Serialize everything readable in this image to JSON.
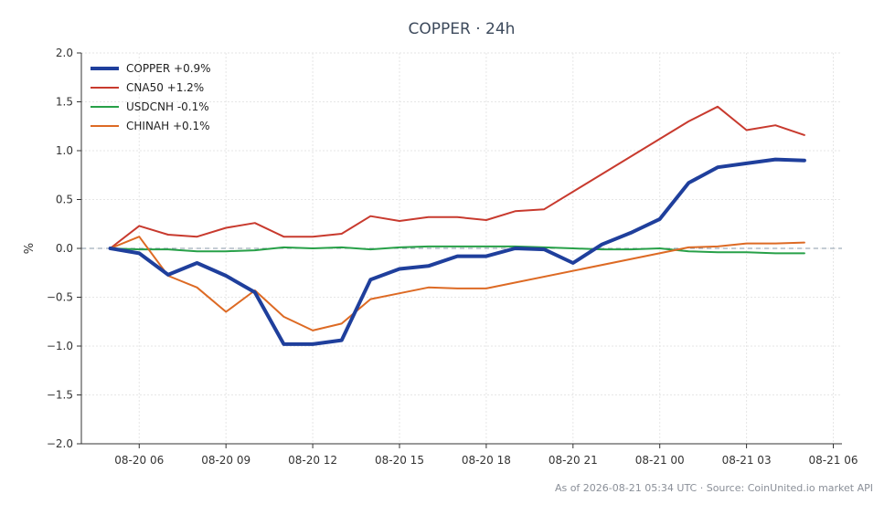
{
  "chart_data": {
    "type": "line",
    "title": "COPPER · 24h",
    "xlabel": "",
    "ylabel": "%",
    "ylim": [
      -2.0,
      2.0
    ],
    "y_ticks": [
      "2.0",
      "1.5",
      "1.0",
      "0.5",
      "0.0",
      "−0.5",
      "−1.0",
      "−1.5",
      "−2.0"
    ],
    "x_ticks": [
      "08-20 06",
      "08-20 09",
      "08-20 12",
      "08-20 15",
      "08-20 18",
      "08-20 21",
      "08-21 00",
      "08-21 03",
      "08-21 06"
    ],
    "x_unit": "hours",
    "xlim": [
      4.0,
      30.3
    ],
    "grid": true,
    "legend_position": "top-left",
    "zero_line": true,
    "series": [
      {
        "name": "COPPER +0.9%",
        "color": "#1f3f9c",
        "x": [
          5,
          6,
          7,
          8,
          9,
          10,
          11,
          12,
          13,
          14,
          15,
          16,
          17,
          18,
          19,
          20,
          21,
          22,
          23,
          24,
          25,
          26,
          27,
          28,
          29
        ],
        "values": [
          0.0,
          -0.05,
          -0.27,
          -0.15,
          -0.28,
          -0.45,
          -0.98,
          -0.98,
          -0.94,
          -0.32,
          -0.21,
          -0.18,
          -0.08,
          -0.08,
          0.0,
          -0.01,
          -0.15,
          0.04,
          0.16,
          0.3,
          0.67,
          0.83,
          0.87,
          0.91,
          0.9
        ]
      },
      {
        "name": "CNA50 +1.2%",
        "color": "#c83a2e",
        "x": [
          5,
          6,
          7,
          8,
          9,
          10,
          11,
          12,
          13,
          14,
          15,
          16,
          17,
          18,
          19,
          20,
          25,
          26,
          27,
          28,
          29
        ],
        "values": [
          0.0,
          0.23,
          0.14,
          0.12,
          0.21,
          0.26,
          0.12,
          0.12,
          0.15,
          0.33,
          0.28,
          0.32,
          0.32,
          0.29,
          0.38,
          0.4,
          1.3,
          1.45,
          1.21,
          1.26,
          1.16
        ]
      },
      {
        "name": "USDCNH -0.1%",
        "color": "#27a048",
        "x": [
          5,
          6,
          7,
          8,
          9,
          10,
          11,
          12,
          13,
          14,
          15,
          16,
          17,
          18,
          19,
          20,
          21,
          22,
          23,
          24,
          25,
          26,
          27,
          28,
          29
        ],
        "values": [
          0.0,
          -0.01,
          -0.01,
          -0.03,
          -0.03,
          -0.02,
          0.01,
          0.0,
          0.01,
          -0.01,
          0.01,
          0.02,
          0.02,
          0.02,
          0.02,
          0.01,
          0.0,
          -0.01,
          -0.01,
          0.0,
          -0.03,
          -0.04,
          -0.04,
          -0.05,
          -0.05
        ]
      },
      {
        "name": "CHINAH +0.1%",
        "color": "#dd6a24",
        "x": [
          5,
          6,
          7,
          8,
          9,
          10,
          11,
          12,
          13,
          14,
          15,
          16,
          17,
          18,
          25,
          26,
          27,
          28,
          29
        ],
        "values": [
          0.0,
          0.12,
          -0.28,
          -0.4,
          -0.65,
          -0.43,
          -0.7,
          -0.84,
          -0.77,
          -0.52,
          -0.46,
          -0.4,
          -0.41,
          -0.41,
          0.01,
          0.02,
          0.05,
          0.05,
          0.06
        ]
      }
    ],
    "footer": "As of 2026-08-21 05:34 UTC · Source: CoinUnited.io market API"
  }
}
